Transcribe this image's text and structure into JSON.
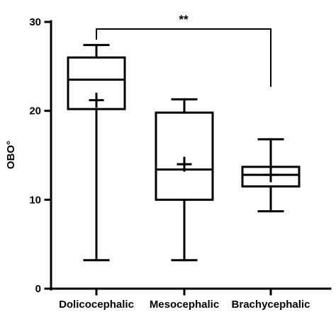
{
  "chart_data": {
    "type": "box",
    "title": "",
    "xlabel": "",
    "ylabel": "OBO°",
    "ylim": [
      0,
      30
    ],
    "yticks": [
      0,
      10,
      20,
      30
    ],
    "grid": false,
    "categories": [
      "Dolicocephalic",
      "Mesocephalic",
      "Brachycephalic"
    ],
    "boxes": [
      {
        "category": "Dolicocephalic",
        "min": 3.2,
        "q1": 20.2,
        "median": 23.5,
        "q3": 26.0,
        "max": 27.4,
        "mean": 21.2
      },
      {
        "category": "Mesocephalic",
        "min": 3.2,
        "q1": 10.0,
        "median": 13.4,
        "q3": 19.8,
        "max": 21.3,
        "mean": 14.0
      },
      {
        "category": "Brachycephalic",
        "min": 8.7,
        "q1": 11.5,
        "median": 12.8,
        "q3": 13.7,
        "max": 16.8,
        "mean": 12.8
      }
    ],
    "significance": {
      "label": "**",
      "from": "Dolicocephalic",
      "to": "Brachycephalic",
      "bracket_y": 29.2,
      "left_end_y": 28.0,
      "right_end_y": 22.7
    }
  }
}
